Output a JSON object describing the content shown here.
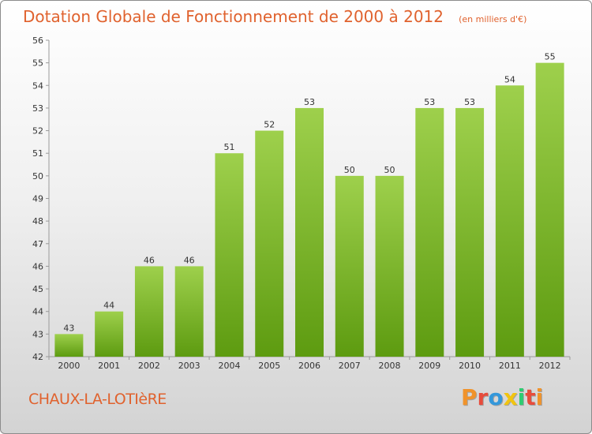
{
  "header": {
    "title": "Dotation Globale de Fonctionnement de 2000 à 2012",
    "subtitle": "(en milliers d'€)"
  },
  "footer": {
    "commune": "CHAUX-LA-LOTIèRE",
    "logo": "Proxiti",
    "logo_colors": [
      "#f0932b",
      "#e74c3c",
      "#3498db",
      "#f1c40f",
      "#2ecc71",
      "#e74c3c",
      "#f0932b"
    ]
  },
  "colors": {
    "text_accent": "#e0622e",
    "bar_top": "#9ed04c",
    "bar_bottom": "#5d9b10"
  },
  "chart_data": {
    "type": "bar",
    "title": "Dotation Globale de Fonctionnement de 2000 à 2012",
    "subtitle": "(en milliers d'€)",
    "xlabel": "",
    "ylabel": "",
    "categories": [
      "2000",
      "2001",
      "2002",
      "2003",
      "2004",
      "2005",
      "2006",
      "2007",
      "2008",
      "2009",
      "2010",
      "2011",
      "2012"
    ],
    "values": [
      43,
      44,
      46,
      46,
      51,
      52,
      53,
      50,
      50,
      53,
      53,
      54,
      55
    ],
    "ylim": [
      42,
      56
    ],
    "yticks": [
      42,
      43,
      44,
      45,
      46,
      47,
      48,
      49,
      50,
      51,
      52,
      53,
      54,
      55,
      56
    ],
    "grid": false,
    "data_labels": true
  }
}
